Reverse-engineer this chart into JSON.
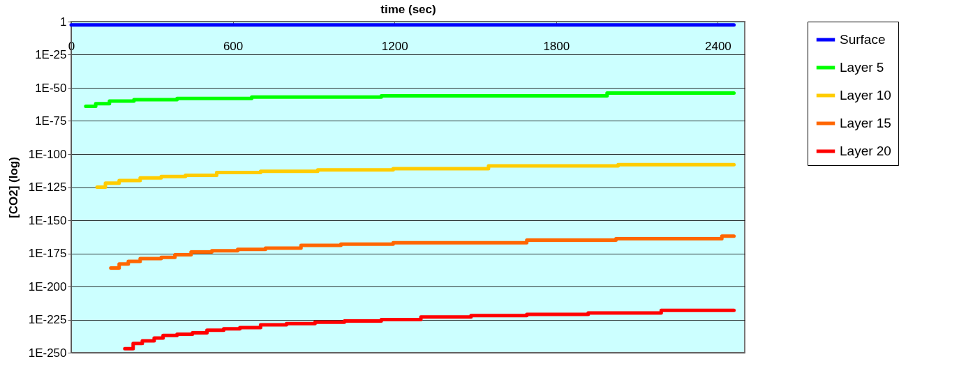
{
  "chart_data": {
    "type": "step",
    "xlabel": "time (sec)",
    "ylabel": "[CO2] (log)",
    "xlim": [
      0,
      2500
    ],
    "xticks": [
      0,
      600,
      1200,
      1800,
      2400
    ],
    "ylim": [
      1e-250,
      1
    ],
    "yticks": [
      1,
      {
        "value": 1e-25,
        "label": "1E-25"
      },
      {
        "value": 1e-50,
        "label": "1E-50"
      },
      {
        "value": 1e-75,
        "label": "1E-75"
      },
      {
        "value": 1e-100,
        "label": "1E-100"
      },
      {
        "value": 1e-125,
        "label": "1E-125"
      },
      {
        "value": 1e-150,
        "label": "1E-150"
      },
      {
        "value": 1e-175,
        "label": "1E-175"
      },
      {
        "value": 1e-200,
        "label": "1E-200"
      },
      {
        "value": 1e-225,
        "label": "1E-225"
      },
      {
        "value": 1e-250,
        "label": "1E-250"
      }
    ],
    "log": true,
    "grid": "y",
    "legend": "right",
    "series": [
      {
        "name": "Surface",
        "color": "#0000ff",
        "x": [
          0,
          2460
        ],
        "values": [
          0.003,
          0.003
        ]
      },
      {
        "name": "Layer 5",
        "color": "#00ff00",
        "x": [
          54,
          91,
          142,
          233,
          393,
          670,
          1151,
          1989,
          2460
        ],
        "values": [
          1e-64,
          1e-62,
          1e-60,
          1e-59,
          1e-58,
          1e-57,
          1e-56,
          1e-54,
          1e-54
        ]
      },
      {
        "name": "Layer 10",
        "color": "#ffcc00",
        "x": [
          96,
          127,
          178,
          256,
          334,
          424,
          540,
          703,
          915,
          1195,
          1549,
          2030,
          2460
        ],
        "values": [
          1e-125,
          1e-122,
          1e-120,
          1e-118,
          1e-117,
          1e-116,
          1e-114,
          1e-113,
          1e-112,
          1e-111,
          1e-109,
          1e-108,
          1e-108
        ]
      },
      {
        "name": "Layer 15",
        "color": "#ff6600",
        "x": [
          147,
          178,
          212,
          256,
          334,
          385,
          445,
          522,
          618,
          721,
          853,
          1001,
          1195,
          1691,
          2022,
          2415,
          2460
        ],
        "values": [
          1e-186,
          1e-183,
          1e-181,
          1e-179,
          1e-178,
          1e-176,
          1e-174,
          1e-173,
          1e-172,
          1e-171,
          1e-169,
          1e-168,
          1e-167,
          1e-165,
          1e-164,
          1e-162,
          1e-162
        ]
      },
      {
        "name": "Layer 20",
        "color": "#ff0000",
        "x": [
          199,
          230,
          264,
          308,
          341,
          393,
          450,
          504,
          566,
          626,
          703,
          799,
          905,
          1014,
          1151,
          1298,
          1484,
          1691,
          1919,
          2190,
          2460
        ],
        "values": [
          1e-247,
          1e-243,
          1e-241,
          1e-239,
          1e-237,
          1e-236,
          1e-235,
          1e-233,
          1e-232,
          1e-231,
          1e-229,
          1e-228,
          1e-227,
          1e-226,
          1e-225,
          1e-223,
          1e-222,
          1e-221,
          1e-220,
          1e-218,
          1e-218
        ]
      }
    ]
  }
}
